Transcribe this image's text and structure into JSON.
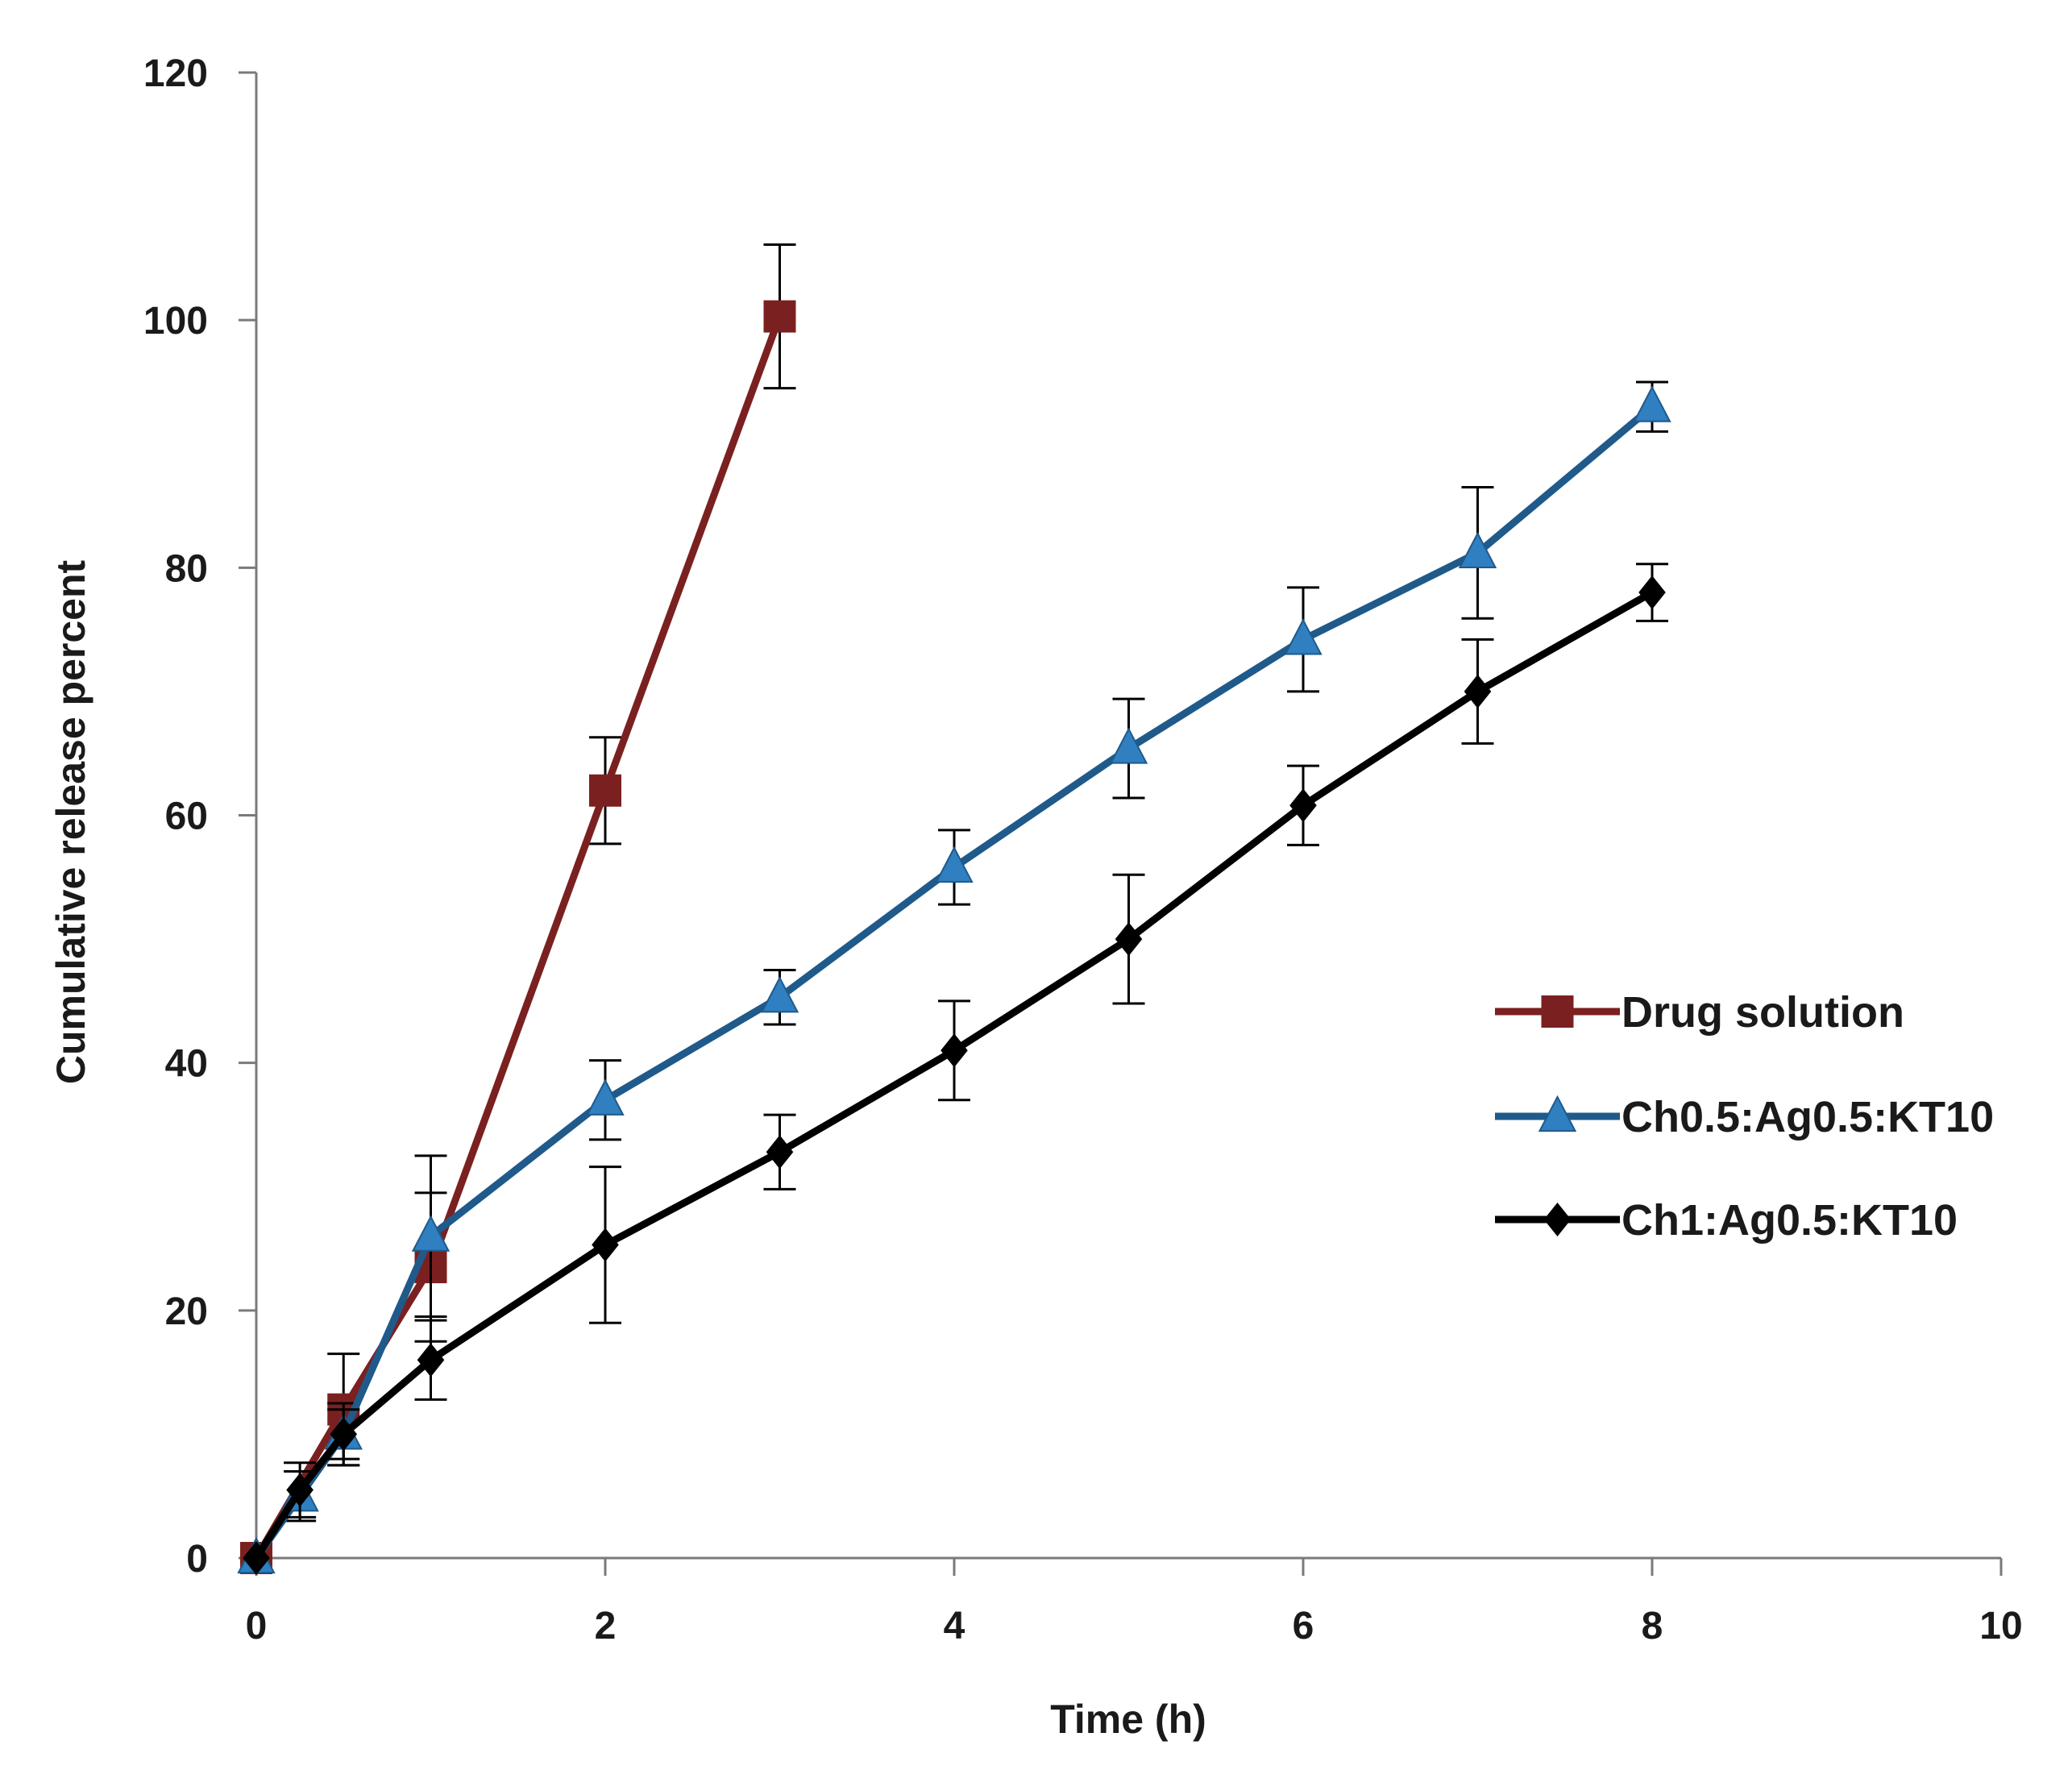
{
  "chart_data": {
    "type": "line",
    "title": "",
    "xlabel": "Time (h)",
    "ylabel": "Cumulative release percent",
    "xlim": [
      0,
      10
    ],
    "ylim": [
      0,
      120
    ],
    "xticks": [
      0,
      2,
      4,
      6,
      8,
      10
    ],
    "yticks": [
      0,
      20,
      40,
      60,
      80,
      100,
      120
    ],
    "grid": false,
    "legend_position": "right",
    "series": [
      {
        "name": "Drug solution",
        "color": "#7b2020",
        "marker": "square",
        "x": [
          0,
          0.5,
          1,
          2,
          3
        ],
        "y": [
          0,
          12,
          23.5,
          62,
          100.3
        ],
        "error": [
          0,
          4.5,
          6,
          4.3,
          5.8
        ]
      },
      {
        "name": "Ch0.5:Ag0.5:KT10",
        "color": "#1f5a8a",
        "marker": "triangle",
        "x": [
          0,
          0.25,
          0.5,
          1,
          2,
          3,
          4,
          5,
          6,
          7,
          8
        ],
        "y": [
          0,
          5,
          10,
          26,
          37,
          45.3,
          55.8,
          65.4,
          74.2,
          81.2,
          93
        ],
        "error": [
          0,
          2,
          2.5,
          6.5,
          3.2,
          2.2,
          3,
          4,
          4.2,
          5.3,
          2
        ]
      },
      {
        "name": "Ch1:Ag0.5:KT10",
        "color": "#000000",
        "marker": "diamond",
        "x": [
          0,
          0.25,
          0.5,
          1,
          2,
          3,
          4,
          5,
          6,
          7,
          8
        ],
        "y": [
          0,
          5.5,
          10,
          16,
          25.3,
          32.8,
          41,
          50,
          60.8,
          70,
          78
        ],
        "error": [
          0,
          2.2,
          2,
          3.2,
          6.3,
          3,
          4,
          5.2,
          3.2,
          4.2,
          2.3
        ]
      }
    ]
  }
}
